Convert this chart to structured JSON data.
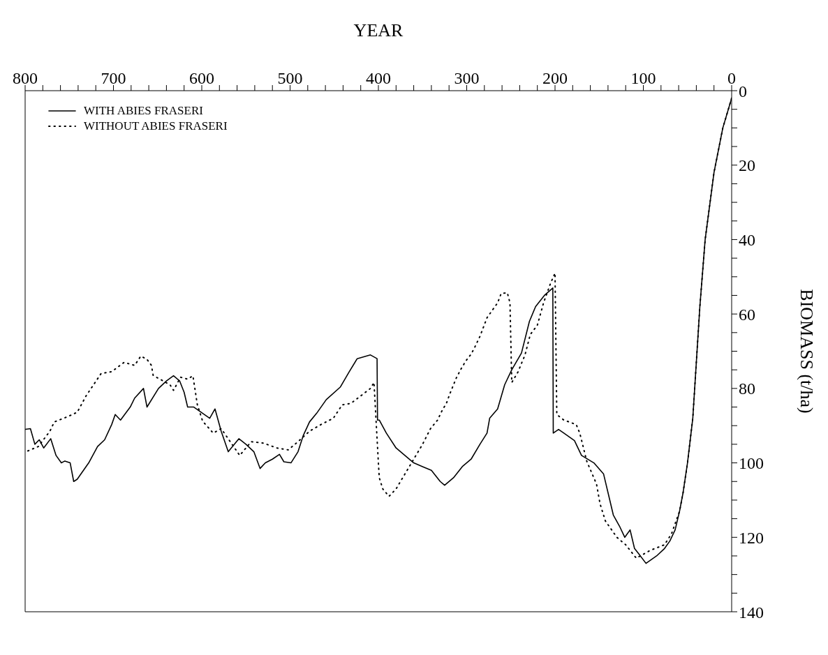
{
  "chart_data": {
    "type": "line",
    "xlabel": "YEAR",
    "ylabel": "BIOMASS (t/ha)",
    "xlim": [
      800,
      0
    ],
    "ylim": [
      140,
      0
    ],
    "xticks": [
      0,
      {
        "value": 20,
        "label": null
      },
      {
        "value": 40,
        "label": null
      },
      {
        "value": 60,
        "label": null
      },
      {
        "value": 80,
        "label": null
      },
      100,
      {
        "value": 120,
        "label": null
      },
      {
        "value": 140,
        "label": null
      },
      {
        "value": 160,
        "label": null
      },
      {
        "value": 180,
        "label": null
      },
      200,
      {
        "value": 220,
        "label": null
      },
      {
        "value": 240,
        "label": null
      },
      {
        "value": 260,
        "label": null
      },
      {
        "value": 280,
        "label": null
      },
      300,
      {
        "value": 320,
        "label": null
      },
      {
        "value": 340,
        "label": null
      },
      {
        "value": 360,
        "label": null
      },
      {
        "value": 380,
        "label": null
      },
      400,
      {
        "value": 420,
        "label": null
      },
      {
        "value": 440,
        "label": null
      },
      {
        "value": 460,
        "label": null
      },
      {
        "value": 480,
        "label": null
      },
      500,
      {
        "value": 520,
        "label": null
      },
      {
        "value": 540,
        "label": null
      },
      {
        "value": 560,
        "label": null
      },
      {
        "value": 580,
        "label": null
      },
      600,
      {
        "value": 620,
        "label": null
      },
      {
        "value": 640,
        "label": null
      },
      {
        "value": 660,
        "label": null
      },
      {
        "value": 680,
        "label": null
      },
      700,
      {
        "value": 720,
        "label": null
      },
      {
        "value": 740,
        "label": null
      },
      {
        "value": 760,
        "label": null
      },
      {
        "value": 780,
        "label": null
      },
      800
    ],
    "yticks": [
      0,
      {
        "value": 5,
        "label": null
      },
      {
        "value": 10,
        "label": null
      },
      {
        "value": 15,
        "label": null
      },
      20,
      {
        "value": 25,
        "label": null
      },
      {
        "value": 30,
        "label": null
      },
      {
        "value": 35,
        "label": null
      },
      40,
      {
        "value": 45,
        "label": null
      },
      {
        "value": 50,
        "label": null
      },
      {
        "value": 55,
        "label": null
      },
      60,
      {
        "value": 65,
        "label": null
      },
      {
        "value": 70,
        "label": null
      },
      {
        "value": 75,
        "label": null
      },
      80,
      {
        "value": 85,
        "label": null
      },
      {
        "value": 90,
        "label": null
      },
      {
        "value": 95,
        "label": null
      },
      100,
      {
        "value": 105,
        "label": null
      },
      {
        "value": 110,
        "label": null
      },
      {
        "value": 115,
        "label": null
      },
      120,
      {
        "value": 125,
        "label": null
      },
      {
        "value": 130,
        "label": null
      },
      {
        "value": 135,
        "label": null
      },
      140
    ],
    "grid": false,
    "legend": "top left",
    "marker": "none",
    "series": [
      {
        "name": "WITH ABIES FRASERI",
        "color": "#000000",
        "line_style": "solid",
        "x": [
          0,
          10,
          20,
          30,
          36,
          40,
          44,
          50,
          55,
          59,
          64,
          70,
          76,
          85,
          97,
          105,
          110,
          115,
          121,
          127,
          134,
          140,
          145,
          156,
          170,
          178,
          190,
          196,
          202,
          202.5,
          212,
          222,
          229,
          238,
          249,
          257,
          265,
          274,
          277,
          285,
          295,
          305,
          315,
          325,
          330,
          340,
          350,
          360,
          370,
          380,
          391,
          399,
          401,
          401.5,
          409,
          424,
          433,
          443,
          459,
          470,
          478,
          485,
          491,
          499,
          507,
          512,
          520,
          528,
          534,
          541,
          550,
          558,
          570,
          578,
          585,
          591,
          609,
          616,
          620,
          625,
          632,
          640,
          649,
          662,
          666,
          676,
          681,
          692,
          698,
          702,
          710,
          718,
          728,
          741,
          745,
          749,
          755,
          759,
          765,
          771,
          779,
          784,
          789,
          794,
          800
        ],
        "values": [
          2,
          10,
          22,
          40,
          58,
          73,
          88,
          100,
          108,
          113,
          118,
          121,
          123,
          125,
          127,
          124.5,
          123,
          118,
          120,
          117,
          114,
          108,
          103,
          100,
          98,
          94,
          92,
          91,
          92,
          53,
          55,
          58,
          62,
          70.5,
          75,
          79,
          85.5,
          88,
          92,
          95,
          99,
          101,
          104,
          106,
          105,
          102,
          101,
          100,
          98,
          96,
          92,
          88.5,
          88.5,
          72,
          71,
          72,
          75.5,
          79.6,
          83,
          86.7,
          89,
          92.6,
          97,
          100,
          99.7,
          97.7,
          99,
          100,
          101.5,
          97,
          95,
          93.5,
          97,
          91.5,
          85.5,
          88,
          85,
          85,
          81,
          78,
          76.6,
          78,
          80,
          85,
          80,
          82.6,
          85,
          88.5,
          87,
          89.7,
          93.8,
          95.6,
          100,
          104.4,
          105,
          100,
          99.5,
          100,
          98,
          93.5,
          96,
          93.8,
          95,
          90.8,
          91
        ]
      },
      {
        "name": "WITHOUT ABIES FRASERI",
        "color": "#000000",
        "line_style": "dotted",
        "x": [
          0,
          10,
          20,
          30,
          36,
          40,
          44,
          50,
          55,
          59,
          68,
          76,
          92,
          108,
          120,
          130,
          143,
          149,
          153,
          164,
          172,
          176,
          190,
          198,
          200,
          205,
          213,
          220,
          228,
          234,
          242,
          249,
          251,
          254,
          261,
          265,
          271,
          277,
          285,
          290,
          295,
          301,
          307,
          312,
          319,
          323,
          328,
          333,
          341,
          350,
          360,
          370,
          380,
          388,
          395,
          399,
          400,
          405,
          409,
          420,
          431,
          441,
          451,
          465,
          478,
          491,
          502,
          515,
          530,
          544,
          557,
          578,
          587,
          599,
          605,
          610,
          616,
          624,
          632,
          636,
          655,
          657,
          662,
          669,
          676,
          688,
          702,
          714,
          731,
          741,
          752,
          767,
          772,
          785,
          797,
          800
        ],
        "values": [
          2,
          10,
          22,
          40,
          58,
          73,
          88,
          100,
          108,
          113,
          119,
          122,
          123.5,
          125.6,
          122,
          120,
          115.6,
          111,
          105.7,
          99.6,
          92,
          89.7,
          88.5,
          87,
          49,
          51.7,
          57,
          63,
          65.5,
          71,
          75.6,
          78.4,
          57,
          54.3,
          54.5,
          57,
          59,
          61,
          66,
          68.5,
          70.8,
          72.6,
          75,
          77.3,
          81.4,
          84,
          86,
          88.5,
          90.8,
          95,
          99,
          103,
          107,
          109,
          107,
          104,
          100,
          78.4,
          80,
          82,
          84,
          84.4,
          88,
          89.7,
          91.5,
          94.3,
          96.5,
          96,
          94.7,
          94.3,
          98,
          90.8,
          92,
          88.8,
          84.4,
          76.6,
          77.5,
          77,
          80.5,
          79,
          76.5,
          73.8,
          72.2,
          71.3,
          73.8,
          73,
          75.5,
          76,
          82,
          86.4,
          87.6,
          89,
          91.5,
          95.6,
          96.8,
          96.5
        ]
      }
    ]
  }
}
